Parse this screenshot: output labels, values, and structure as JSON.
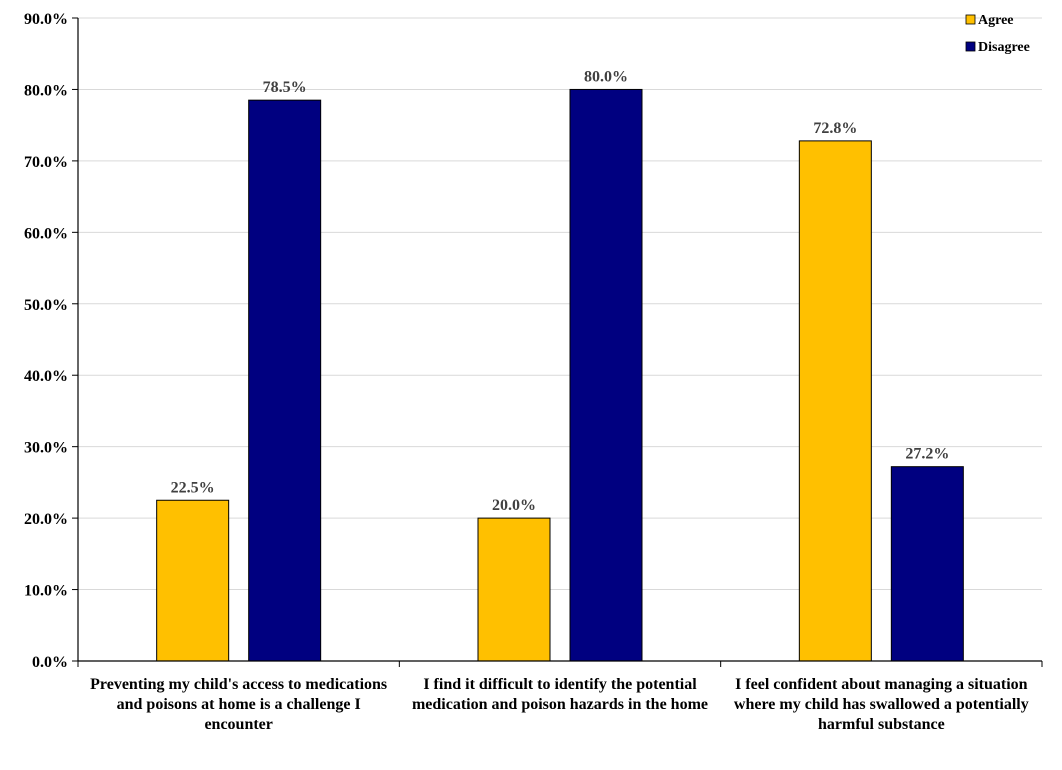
{
  "chart_data": {
    "type": "bar",
    "categories": [
      "Preventing my child's access to medications and poisons at home is a challenge I encounter",
      "I find it difficult to identify the potential medication and poison hazards in the home",
      "I feel confident about managing a situation where my child has swallowed a potentially harmful substance"
    ],
    "series": [
      {
        "name": "Agree",
        "color": "#FFC000",
        "values": [
          22.5,
          20.0,
          72.8
        ],
        "labels": [
          "22.5%",
          "20.0%",
          "72.8%"
        ]
      },
      {
        "name": "Disagree",
        "color": "#000080",
        "values": [
          78.5,
          80.0,
          27.2
        ],
        "labels": [
          "78.5%",
          "80.0%",
          "27.2%"
        ]
      }
    ],
    "ylim": [
      0,
      90
    ],
    "yticks": [
      "0.0%",
      "10.0%",
      "20.0%",
      "30.0%",
      "40.0%",
      "50.0%",
      "60.0%",
      "70.0%",
      "80.0%",
      "90.0%"
    ],
    "grid": true,
    "legend_position": "top-right"
  }
}
